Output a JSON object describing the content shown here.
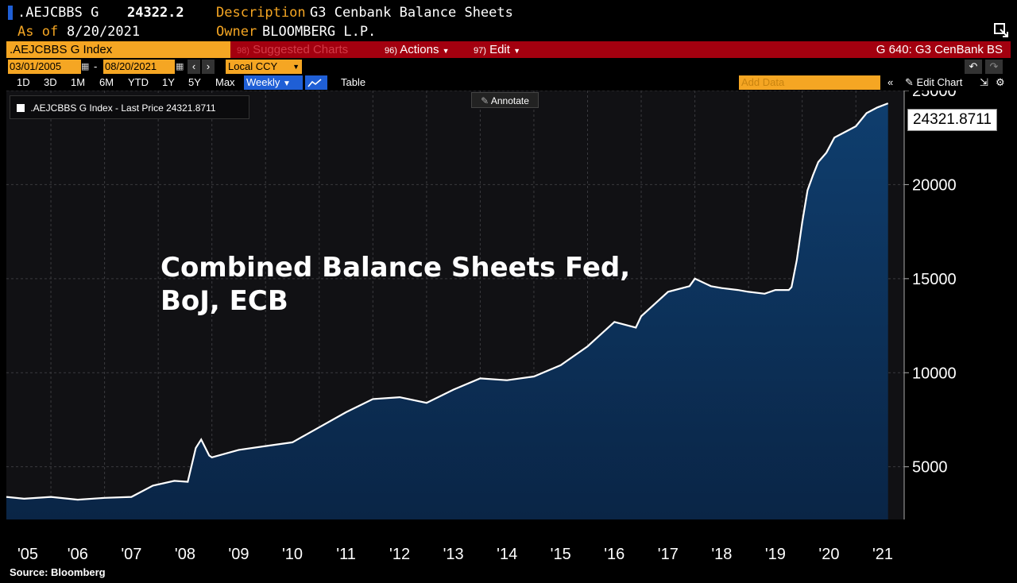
{
  "header": {
    "ticker": ".AEJCBBS G",
    "price": "24322.2",
    "description_label": "Description",
    "description_value": "G3 Cenbank Balance Sheets",
    "asof_label": "As of",
    "asof_value": "8/20/2021",
    "owner_label": "Owner",
    "owner_value": "BLOOMBERG L.P."
  },
  "commandbar": {
    "security": ".AEJCBBS G Index",
    "suggested_num": "98)",
    "suggested": "Suggested Charts",
    "actions_num": "96)",
    "actions": "Actions",
    "edit_num": "97)",
    "edit": "Edit",
    "function": "G 640: G3 CenBank BS"
  },
  "daterow": {
    "start": "03/01/2005",
    "sep": "-",
    "end": "08/20/2021",
    "currency": "Local CCY"
  },
  "toolbar": {
    "ranges": [
      "1D",
      "3D",
      "1M",
      "6M",
      "YTD",
      "1Y",
      "5Y",
      "Max"
    ],
    "frequency": "Weekly",
    "table": "Table",
    "add_data_placeholder": "Add Data",
    "edit_chart": "Edit Chart"
  },
  "legend": {
    "text": ".AEJCBBS G Index - Last Price 24321.8711"
  },
  "annotate": "Annotate",
  "overlay_title_line1": "Combined Balance Sheets Fed,",
  "overlay_title_line2": "BoJ, ECB",
  "last_value_label": "24321.8711",
  "source": "Source: Bloomberg",
  "colors": {
    "orange": "#f5a623",
    "red_bar": "#a3000f",
    "blue_button": "#1f5fd6",
    "area_fill_top": "#0e3a66",
    "area_fill_bottom": "#0a2342",
    "plot_bg": "#111114",
    "line": "#ffffff"
  },
  "chart_data": {
    "type": "area",
    "title": "",
    "xlabel": "",
    "ylabel": "",
    "x_tick_labels": [
      "'05",
      "'06",
      "'07",
      "'08",
      "'09",
      "'10",
      "'11",
      "'12",
      "'13",
      "'14",
      "'15",
      "'16",
      "'17",
      "'18",
      "'19",
      "'20",
      "'21"
    ],
    "y_ticks": [
      5000,
      10000,
      15000,
      20000,
      25000
    ],
    "ylim": [
      2200,
      25000
    ],
    "xlim": [
      2005.17,
      2021.9
    ],
    "grid": true,
    "series": [
      {
        "x": [
          2005.17,
          2005.5,
          2006.0,
          2006.5,
          2007.0,
          2007.5,
          2007.9,
          2008.3,
          2008.55,
          2008.7,
          2008.8,
          2008.95,
          2009.0,
          2009.5,
          2010.0,
          2010.5,
          2011.0,
          2011.5,
          2012.0,
          2012.5,
          2013.0,
          2013.5,
          2014.0,
          2014.5,
          2015.0,
          2015.5,
          2016.0,
          2016.5,
          2016.9,
          2017.0,
          2017.5,
          2017.9,
          2018.0,
          2018.3,
          2018.5,
          2018.8,
          2019.0,
          2019.3,
          2019.5,
          2019.75,
          2019.8,
          2019.9,
          2020.0,
          2020.1,
          2020.2,
          2020.3,
          2020.45,
          2020.6,
          2020.8,
          2021.0,
          2021.2,
          2021.4,
          2021.6
        ],
        "y": [
          3400,
          3300,
          3400,
          3250,
          3350,
          3400,
          4000,
          4250,
          4200,
          6000,
          6450,
          5600,
          5500,
          5900,
          6100,
          6300,
          7100,
          7900,
          8600,
          8700,
          8400,
          9100,
          9700,
          9600,
          9800,
          10400,
          11400,
          12700,
          12400,
          13000,
          14300,
          14600,
          15000,
          14600,
          14500,
          14400,
          14300,
          14200,
          14400,
          14400,
          14550,
          16000,
          18000,
          19700,
          20500,
          21200,
          21700,
          22500,
          22800,
          23100,
          23800,
          24100,
          24322
        ]
      }
    ]
  }
}
